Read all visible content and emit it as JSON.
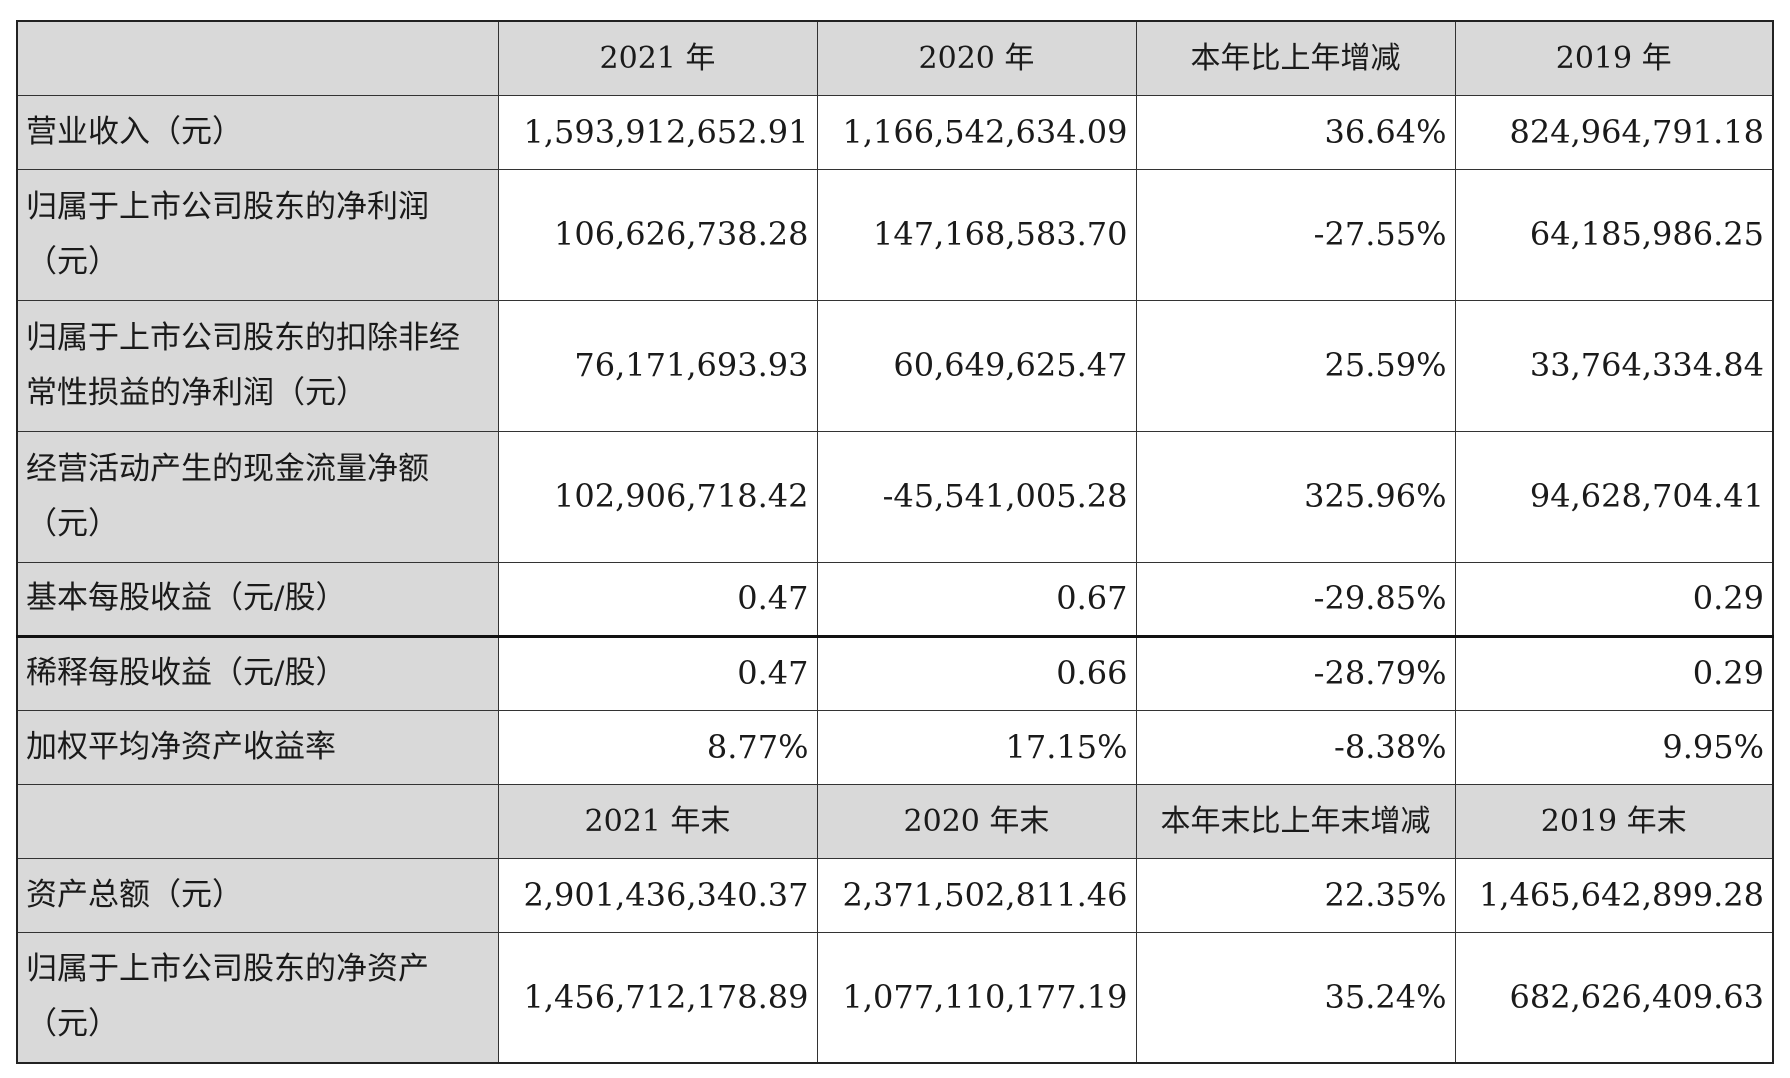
{
  "header1": {
    "label": "",
    "columns": [
      "2021 年",
      "2020 年",
      "本年比上年增减",
      "2019 年"
    ]
  },
  "header2": {
    "label": "",
    "columns": [
      "2021 年末",
      "2020 年末",
      "本年末比上年末增减",
      "2019 年末"
    ]
  },
  "rows": [
    {
      "label": "营业收入（元）",
      "values": [
        "1,593,912,652.91",
        "1,166,542,634.09",
        "36.64%",
        "824,964,791.18"
      ]
    },
    {
      "label": "归属于上市公司股东的净利润（元）",
      "values": [
        "106,626,738.28",
        "147,168,583.70",
        "-27.55%",
        "64,185,986.25"
      ]
    },
    {
      "label": "归属于上市公司股东的扣除非经常性损益的净利润（元）",
      "values": [
        "76,171,693.93",
        "60,649,625.47",
        "25.59%",
        "33,764,334.84"
      ]
    },
    {
      "label": "经营活动产生的现金流量净额（元）",
      "values": [
        "102,906,718.42",
        "-45,541,005.28",
        "325.96%",
        "94,628,704.41"
      ]
    },
    {
      "label": "基本每股收益（元/股）",
      "values": [
        "0.47",
        "0.67",
        "-29.85%",
        "0.29"
      ]
    },
    {
      "label": "稀释每股收益（元/股）",
      "values": [
        "0.47",
        "0.66",
        "-28.79%",
        "0.29"
      ]
    },
    {
      "label": "加权平均净资产收益率",
      "values": [
        "8.77%",
        "17.15%",
        "-8.38%",
        "9.95%"
      ]
    }
  ],
  "rows2": [
    {
      "label": "资产总额（元）",
      "values": [
        "2,901,436,340.37",
        "2,371,502,811.46",
        "22.35%",
        "1,465,642,899.28"
      ]
    },
    {
      "label": "归属于上市公司股东的净资产（元）",
      "values": [
        "1,456,712,178.89",
        "1,077,110,177.19",
        "35.24%",
        "682,626,409.63"
      ]
    }
  ]
}
